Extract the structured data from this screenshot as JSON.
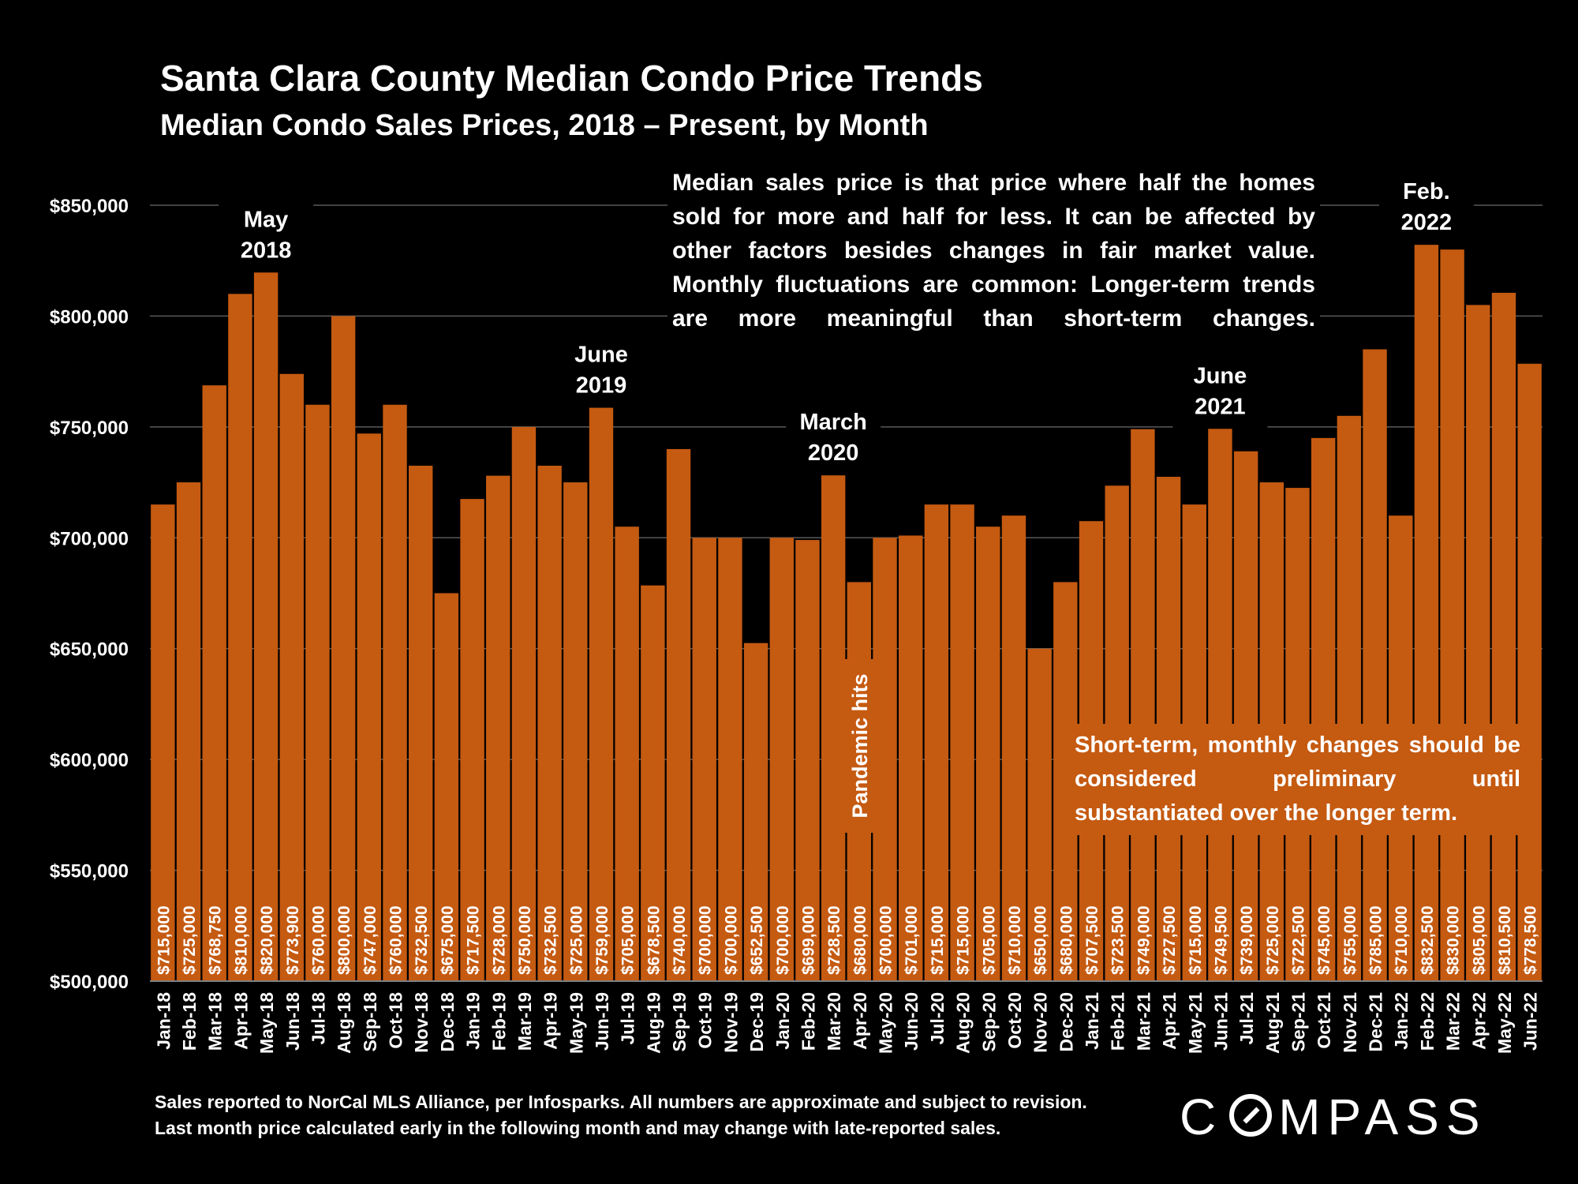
{
  "title": "Santa Clara County Median Condo Price Trends",
  "subtitle": "Median Condo Sales Prices, 2018 – Present, by Month",
  "note_top": "Median sales price is that price where half the homes sold for more and half for less. It can be affected by other factors besides changes in fair market value. Monthly fluctuations are common: Longer-term trends are more meaningful than short-term changes.",
  "note_bottom": "Short-term, monthly changes should be considered preliminary until substantiated over the longer term.",
  "footer": {
    "line1": "Sales reported to NorCal MLS Alliance, per Infosparks. All numbers are approximate and subject to revision.",
    "line2": "Last month price calculated early in the following month and may change with late-reported sales."
  },
  "brand": {
    "before": "C",
    "after": "MPASS"
  },
  "colors": {
    "bar": "#c55a11",
    "background": "#000000",
    "grid": "#595959",
    "text": "#ffffff"
  },
  "chart_data": {
    "type": "bar",
    "categories": [
      "Jan-18",
      "Feb-18",
      "Mar-18",
      "Apr-18",
      "May-18",
      "Jun-18",
      "Jul-18",
      "Aug-18",
      "Sep-18",
      "Oct-18",
      "Nov-18",
      "Dec-18",
      "Jan-19",
      "Feb-19",
      "Mar-19",
      "Apr-19",
      "May-19",
      "Jun-19",
      "Jul-19",
      "Aug-19",
      "Sep-19",
      "Oct-19",
      "Nov-19",
      "Dec-19",
      "Jan-20",
      "Feb-20",
      "Mar-20",
      "Apr-20",
      "May-20",
      "Jun-20",
      "Jul-20",
      "Aug-20",
      "Sep-20",
      "Oct-20",
      "Nov-20",
      "Dec-20",
      "Jan-21",
      "Feb-21",
      "Mar-21",
      "Apr-21",
      "May-21",
      "Jun-21",
      "Jul-21",
      "Aug-21",
      "Sep-21",
      "Oct-21",
      "Nov-21",
      "Dec-21",
      "Jan-22",
      "Feb-22",
      "Mar-22",
      "Apr-22",
      "May-22",
      "Jun-22"
    ],
    "values": [
      715000,
      725000,
      768750,
      810000,
      820000,
      773900,
      760000,
      800000,
      747000,
      760000,
      732500,
      675000,
      717500,
      728000,
      750000,
      732500,
      725000,
      759000,
      705000,
      678500,
      740000,
      700000,
      700000,
      652500,
      700000,
      699000,
      728500,
      680000,
      700000,
      701000,
      715000,
      715000,
      705000,
      710000,
      650000,
      680000,
      707500,
      723500,
      749000,
      727500,
      715000,
      749500,
      739000,
      725000,
      722500,
      745000,
      755000,
      785000,
      710000,
      832500,
      830000,
      805000,
      810500,
      778500
    ],
    "value_labels": [
      "$715,000",
      "$725,000",
      "$768,750",
      "$810,000",
      "$820,000",
      "$773,900",
      "$760,000",
      "$800,000",
      "$747,000",
      "$760,000",
      "$732,500",
      "$675,000",
      "$717,500",
      "$728,000",
      "$750,000",
      "$732,500",
      "$725,000",
      "$759,000",
      "$705,000",
      "$678,500",
      "$740,000",
      "$700,000",
      "$700,000",
      "$652,500",
      "$700,000",
      "$699,000",
      "$728,500",
      "$680,000",
      "$700,000",
      "$701,000",
      "$715,000",
      "$715,000",
      "$705,000",
      "$710,000",
      "$650,000",
      "$680,000",
      "$707,500",
      "$723,500",
      "$749,000",
      "$727,500",
      "$715,000",
      "$749,500",
      "$739,000",
      "$725,000",
      "$722,500",
      "$745,000",
      "$755,000",
      "$785,000",
      "$710,000",
      "$832,500",
      "$830,000",
      "$805,000",
      "$810,500",
      "$778,500"
    ],
    "ylim": [
      500000,
      850000
    ],
    "yticks": [
      500000,
      550000,
      600000,
      650000,
      700000,
      750000,
      800000,
      850000
    ],
    "ytick_labels": [
      "$500,000",
      "$550,000",
      "$600,000",
      "$650,000",
      "$700,000",
      "$750,000",
      "$800,000",
      "$850,000"
    ],
    "grid": true,
    "annotations": [
      {
        "lines": [
          "May",
          "2018"
        ],
        "index": 4
      },
      {
        "lines": [
          "June",
          "2019"
        ],
        "index": 17
      },
      {
        "lines": [
          "March",
          "2020"
        ],
        "index": 26
      },
      {
        "lines": [
          "June",
          "2021"
        ],
        "index": 41
      },
      {
        "lines": [
          "Feb.",
          "2022"
        ],
        "index": 49
      }
    ],
    "vertical_note": {
      "text": "Pandemic hits",
      "index": 27
    }
  }
}
